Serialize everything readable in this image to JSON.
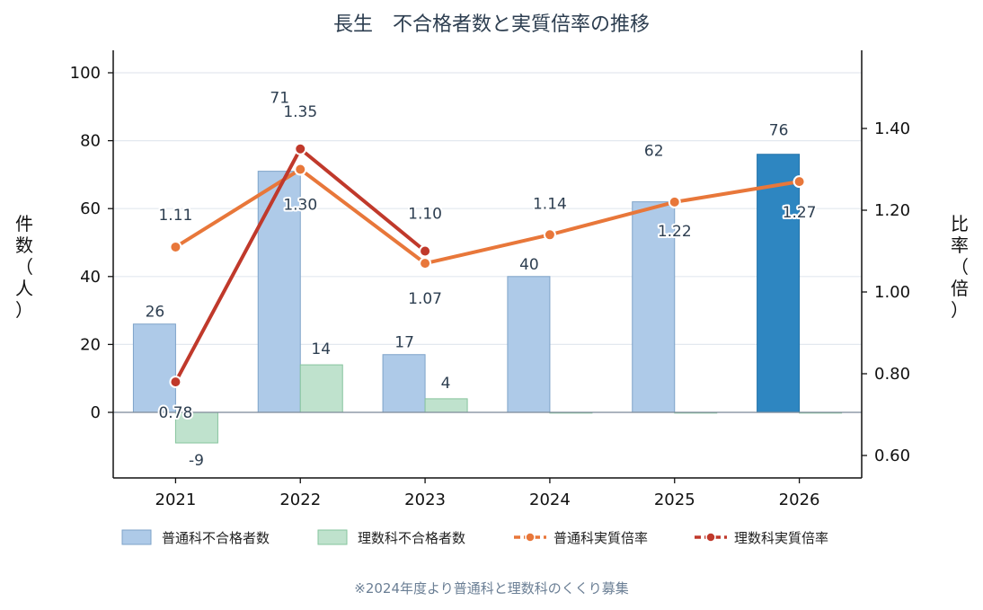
{
  "chart_data": {
    "type": "bar",
    "title": "長生　不合格者数と実質倍率の推移",
    "categories": [
      "2021",
      "2022",
      "2023",
      "2024",
      "2025",
      "2026"
    ],
    "ylabel": "件数（人）",
    "y2label": "比率（倍）",
    "ylim": [
      -19,
      107
    ],
    "yticks": [
      0,
      20,
      40,
      60,
      80,
      100
    ],
    "y2lim": [
      0.544,
      1.595
    ],
    "y2ticks": [
      "0.60",
      "0.80",
      "1.00",
      "1.20",
      "1.40"
    ],
    "grid": true,
    "legend_position": "bottom",
    "series": [
      {
        "name": "普通科不合格者数",
        "kind": "bar",
        "axis": "left",
        "values": [
          26,
          71,
          17,
          40,
          62,
          76
        ],
        "labels": [
          "26",
          "71",
          "17",
          "40",
          "62",
          "76"
        ],
        "color": "#aecae8",
        "highlight_color": "#2e86c1"
      },
      {
        "name": "理数科不合格者数",
        "kind": "bar",
        "axis": "left",
        "values": [
          -9,
          14,
          4,
          0,
          0,
          0
        ],
        "labels": [
          "-9",
          "14",
          "4",
          "",
          "",
          ""
        ],
        "color": "#bfe2cd"
      },
      {
        "name": "普通科実質倍率",
        "kind": "line",
        "axis": "right",
        "values": [
          1.11,
          1.3,
          1.07,
          1.14,
          1.22,
          1.27
        ],
        "labels": [
          "1.11",
          "1.30",
          "1.07",
          "1.14",
          "1.22",
          "1.27"
        ],
        "color": "#e8773a"
      },
      {
        "name": "理数科実質倍率",
        "kind": "line",
        "axis": "right",
        "values": [
          0.78,
          1.35,
          1.1,
          null,
          null,
          null
        ],
        "labels": [
          "0.78",
          "1.35",
          "1.10",
          "",
          "",
          ""
        ],
        "color": "#c0392b"
      }
    ],
    "note": "※2024年度より普通科と理数科のくくり募集"
  }
}
